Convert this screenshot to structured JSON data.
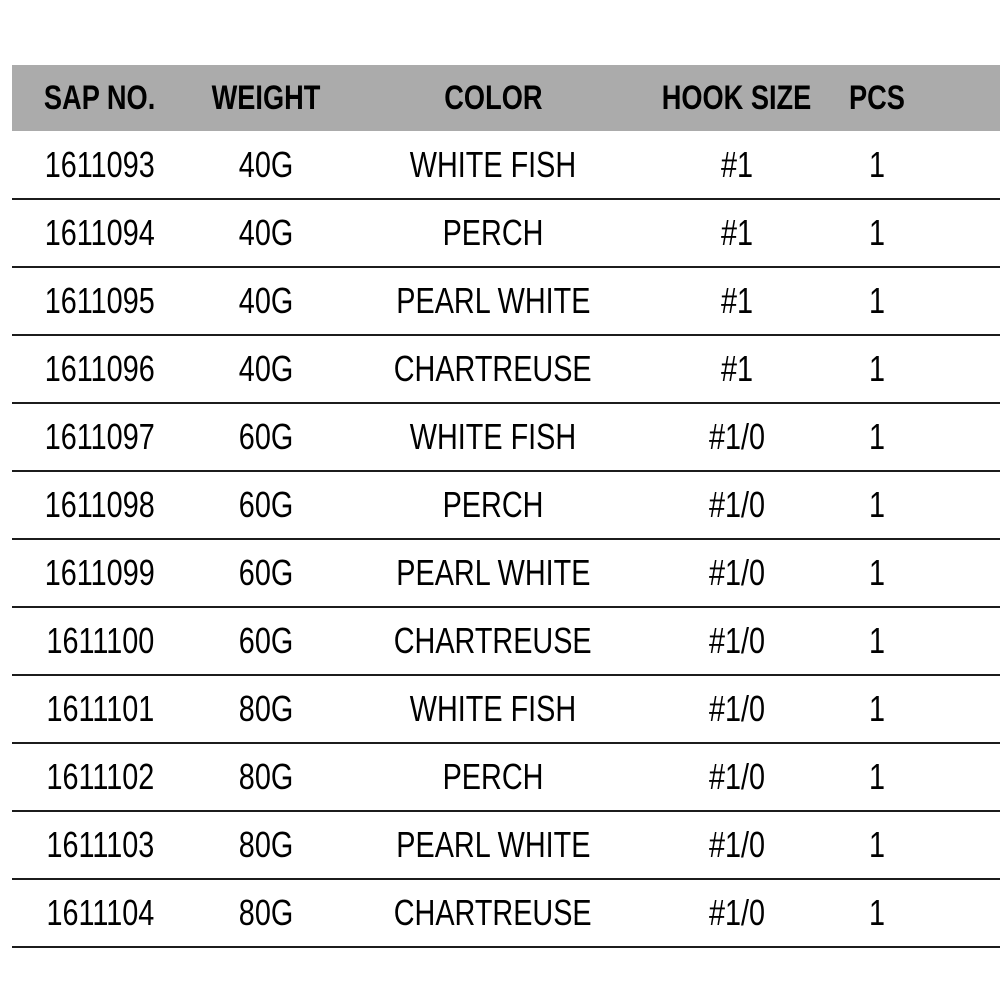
{
  "page": {
    "background": "#ffffff"
  },
  "chart_data": {
    "type": "table",
    "title": "",
    "columns": [
      {
        "key": "sap-no",
        "label": "SAP NO."
      },
      {
        "key": "weight",
        "label": "WEIGHT"
      },
      {
        "key": "color",
        "label": "COLOR"
      },
      {
        "key": "hook-size",
        "label": "HOOK SIZE"
      },
      {
        "key": "pcs",
        "label": "PCS"
      }
    ],
    "rows": [
      [
        "1611093",
        "40G",
        "WHITE FISH",
        "#1",
        "1"
      ],
      [
        "1611094",
        "40G",
        "PERCH",
        "#1",
        "1"
      ],
      [
        "1611095",
        "40G",
        "PEARL WHITE",
        "#1",
        "1"
      ],
      [
        "1611096",
        "40G",
        "CHARTREUSE",
        "#1",
        "1"
      ],
      [
        "1611097",
        "60G",
        "WHITE FISH",
        "#1/0",
        "1"
      ],
      [
        "1611098",
        "60G",
        "PERCH",
        "#1/0",
        "1"
      ],
      [
        "1611099",
        "60G",
        "PEARL WHITE",
        "#1/0",
        "1"
      ],
      [
        "1611100",
        "60G",
        "CHARTREUSE",
        "#1/0",
        "1"
      ],
      [
        "1611101",
        "80G",
        "WHITE FISH",
        "#1/0",
        "1"
      ],
      [
        "1611102",
        "80G",
        "PERCH",
        "#1/0",
        "1"
      ],
      [
        "1611103",
        "80G",
        "PEARL WHITE",
        "#1/0",
        "1"
      ],
      [
        "1611104",
        "80G",
        "CHARTREUSE",
        "#1/0",
        "1"
      ]
    ],
    "colors": {
      "header_background": "#ababab",
      "header_text": "#000000",
      "row_text": "#000000",
      "separator_line": "#1c1c1c",
      "page_background": "#ffffff"
    },
    "layout": {
      "grid": "horizontal separators between data rows and below last row only",
      "header_style": "bold text on solid gray band, no separator under header",
      "alignment": "all cells center-aligned"
    }
  }
}
